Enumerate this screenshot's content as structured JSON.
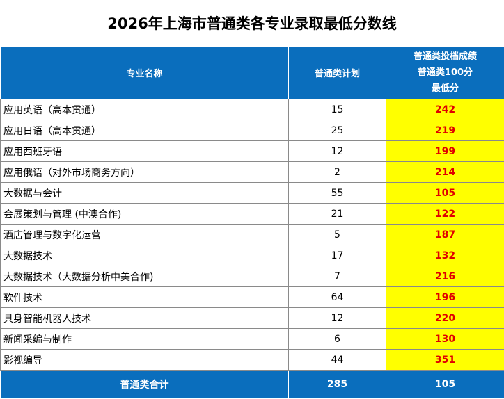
{
  "title": "2026年上海市普通类各专业录取最低分数线",
  "header": {
    "col_name": "专业名称",
    "col_plan": "普通类计划",
    "col_score_line1": "普通类投档成绩",
    "col_score_line2": "普通类100分",
    "col_score_line3": "最低分"
  },
  "rows": [
    {
      "name": "应用英语（高本贯通）",
      "plan": "15",
      "score": "242"
    },
    {
      "name": "应用日语（高本贯通）",
      "plan": "25",
      "score": "219"
    },
    {
      "name": "应用西班牙语",
      "plan": "12",
      "score": "199"
    },
    {
      "name": "应用俄语（对外市场商务方向）",
      "plan": "2",
      "score": "214"
    },
    {
      "name": "大数据与会计",
      "plan": "55",
      "score": "105"
    },
    {
      "name": "会展策划与管理 (中澳合作)",
      "plan": "21",
      "score": "122"
    },
    {
      "name": "酒店管理与数字化运营",
      "plan": "5",
      "score": "187"
    },
    {
      "name": "大数据技术",
      "plan": "17",
      "score": "132"
    },
    {
      "name": "大数据技术（大数据分析中美合作)",
      "plan": "7",
      "score": "216"
    },
    {
      "name": "软件技术",
      "plan": "64",
      "score": "196"
    },
    {
      "name": "具身智能机器人技术",
      "plan": "12",
      "score": "220"
    },
    {
      "name": "新闻采编与制作",
      "plan": "6",
      "score": "130"
    },
    {
      "name": "影视编导",
      "plan": "44",
      "score": "351"
    }
  ],
  "footer": {
    "label": "普通类合计",
    "total_plan": "285",
    "min_score": "105"
  },
  "colors": {
    "header_bg": "#0a6ebd",
    "score_bg": "#ffff00",
    "score_text": "#e00000"
  }
}
